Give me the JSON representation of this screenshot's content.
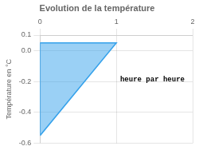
{
  "chart_data": {
    "type": "area",
    "title": "Evolution de la température",
    "ylabel": "Température en °C",
    "x": [
      0,
      0,
      1
    ],
    "values": [
      -0.55,
      0.05,
      0.05
    ],
    "xlim": [
      0,
      2.0
    ],
    "ylim": [
      -0.6,
      0.1
    ],
    "xticks": [
      0,
      1,
      2
    ],
    "yticks": [
      -0.6,
      -0.4,
      -0.2,
      {
        "value": 0.0,
        "label": "0.0"
      },
      0.1
    ],
    "annotations": [
      {
        "text": "heure par heure",
        "x": 1.05,
        "y": -0.19
      }
    ],
    "grid": true
  }
}
